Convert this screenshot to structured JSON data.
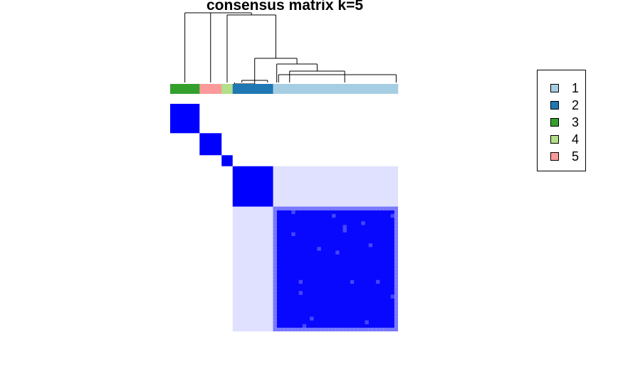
{
  "chart_data": {
    "type": "heatmap",
    "title": "consensus matrix k=5",
    "n_samples": 62,
    "matrix_color": "#0000ff",
    "background_color": "#ffffff",
    "clusters": [
      {
        "label": "1",
        "color": "#a6cee3"
      },
      {
        "label": "2",
        "color": "#1f78b4"
      },
      {
        "label": "3",
        "color": "#33a02c"
      },
      {
        "label": "4",
        "color": "#b2df8a"
      },
      {
        "label": "5",
        "color": "#fb9a99"
      }
    ],
    "column_order_groups": [
      {
        "cluster": "3",
        "size": 8
      },
      {
        "cluster": "5",
        "size": 6
      },
      {
        "cluster": "4",
        "size": 3
      },
      {
        "cluster": "2",
        "size": 11
      },
      {
        "cluster": "1",
        "size": 34
      }
    ],
    "consensus_blocks": [
      {
        "cluster": "3",
        "from": 0,
        "to": 8,
        "value": 1.0
      },
      {
        "cluster": "5",
        "from": 8,
        "to": 14,
        "value": 1.0
      },
      {
        "cluster": "4",
        "from": 14,
        "to": 17,
        "value": 1.0
      },
      {
        "cluster": "2",
        "from": 17,
        "to": 28,
        "value": 1.0
      },
      {
        "cluster": "1",
        "from": 28,
        "to": 62,
        "value": 0.97
      }
    ],
    "off_diagonal": [
      {
        "rows": [
          28,
          62
        ],
        "cols": [
          17,
          28
        ],
        "value": 0.12
      },
      {
        "rows": [
          17,
          28
        ],
        "cols": [
          28,
          62
        ],
        "value": 0.12
      }
    ],
    "legend": {
      "position": "top-right",
      "labels": [
        "1",
        "2",
        "3",
        "4",
        "5"
      ]
    }
  }
}
